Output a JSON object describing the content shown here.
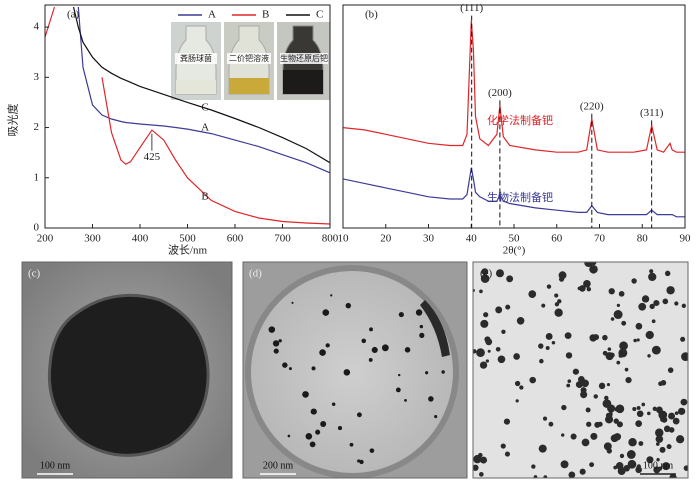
{
  "chart_data": [
    {
      "type": "line",
      "panel_label": "(a)",
      "x_label": "波长/nm",
      "y_label": "吸光度",
      "x": [
        200,
        220,
        250,
        260,
        270,
        280,
        300,
        320,
        340,
        360,
        370,
        380,
        400,
        425,
        450,
        475,
        500,
        550,
        600,
        650,
        700,
        750,
        800
      ],
      "xlim": [
        200,
        800
      ],
      "xticks": [
        200,
        300,
        400,
        500,
        600,
        700,
        800
      ],
      "ylim": [
        0,
        4.44
      ],
      "yticks": [
        0,
        1,
        2,
        3,
        4
      ],
      "series": [
        {
          "name": "A",
          "color": "#3b3b98",
          "values": [
            null,
            null,
            null,
            null,
            4.4,
            3.2,
            2.45,
            2.25,
            2.17,
            2.12,
            2.1,
            2.09,
            2.07,
            2.05,
            2.03,
            2.0,
            1.97,
            1.88,
            1.75,
            1.62,
            1.46,
            1.3,
            1.1
          ]
        },
        {
          "name": "B",
          "color": "#e0262a",
          "values": [
            3.8,
            4.4,
            null,
            null,
            null,
            null,
            null,
            3.0,
            1.9,
            1.35,
            1.27,
            1.32,
            1.6,
            1.95,
            1.75,
            1.35,
            1.0,
            0.55,
            0.33,
            0.2,
            0.13,
            0.1,
            0.08
          ]
        },
        {
          "name": "C",
          "color": "#111111",
          "values": [
            null,
            null,
            null,
            4.4,
            4.0,
            3.7,
            3.4,
            3.2,
            3.08,
            2.98,
            2.94,
            2.9,
            2.82,
            2.74,
            2.66,
            2.58,
            2.5,
            2.35,
            2.18,
            2.0,
            1.8,
            1.58,
            1.3
          ]
        }
      ],
      "annotations": [
        {
          "text": "A",
          "x": 537,
          "y": 1.99
        },
        {
          "text": "B",
          "x": 537,
          "y": 0.62
        },
        {
          "text": "C",
          "x": 537,
          "y": 2.39
        },
        {
          "text": "425",
          "x": 425,
          "y": 1.4
        }
      ],
      "insets": [
        "粪肠球菌",
        "二价钯溶液",
        "生物还原后钯"
      ]
    },
    {
      "type": "line",
      "panel_label": "(b)",
      "x_label": "2θ(°)",
      "x": [
        10,
        15,
        20,
        25,
        30,
        35,
        38,
        39,
        40,
        40.5,
        41,
        42,
        44,
        46,
        46.7,
        47.5,
        49,
        55,
        60,
        65,
        67,
        68.2,
        69.5,
        72,
        78,
        81,
        82.2,
        83.5,
        85,
        86.5,
        87,
        88,
        90
      ],
      "xlim": [
        10,
        90
      ],
      "xticks": [
        10,
        20,
        30,
        40,
        50,
        60,
        70,
        80,
        90
      ],
      "ylim": [
        0,
        100
      ],
      "series": [
        {
          "name": "化学法制备钯",
          "color": "#e0262a",
          "values": [
            45,
            44,
            42,
            40,
            38,
            37,
            37,
            42,
            93,
            80,
            50,
            40,
            37,
            42,
            55,
            41,
            37,
            35,
            34,
            34,
            35,
            49,
            35,
            34,
            34,
            35,
            46,
            35,
            34,
            38,
            35,
            34,
            34
          ]
        },
        {
          "name": "生物法制备钯",
          "color": "#3b3b98",
          "values": [
            22,
            20,
            18,
            16,
            14,
            13,
            13,
            15,
            27,
            22,
            16,
            14,
            12,
            12,
            15,
            12,
            11,
            9,
            8,
            7,
            7,
            10,
            7,
            6,
            6,
            6,
            8,
            6,
            6,
            6,
            6,
            5,
            5
          ]
        }
      ],
      "peaks": [
        {
          "label": "(111)",
          "x": 40.1
        },
        {
          "label": "(200)",
          "x": 46.7
        },
        {
          "label": "(220)",
          "x": 68.2
        },
        {
          "label": "(311)",
          "x": 82.2
        }
      ]
    }
  ],
  "images": [
    {
      "label": "(c)",
      "scale_bar": "100 nm"
    },
    {
      "label": "(d)",
      "scale_bar": "200 nm"
    },
    {
      "label": "(e)",
      "scale_bar": "100 nm"
    }
  ]
}
